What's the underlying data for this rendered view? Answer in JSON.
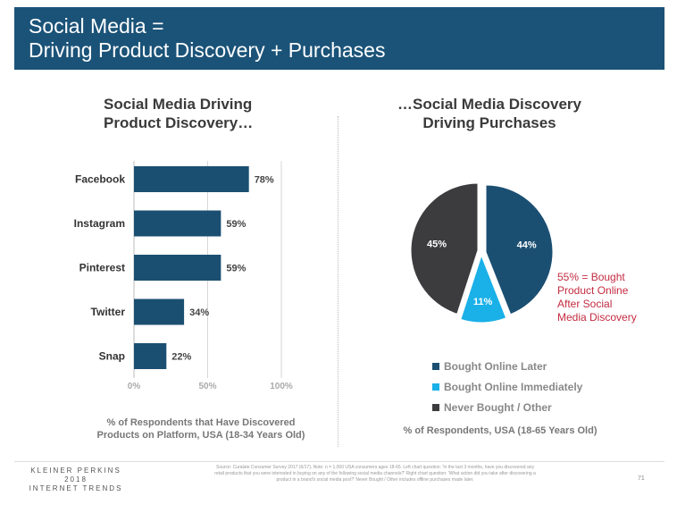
{
  "header": {
    "title_line1": "Social Media =",
    "title_line2": "Driving Product Discovery + Purchases"
  },
  "left_chart": {
    "title_line1": "Social Media Driving",
    "title_line2": "Product Discovery…",
    "caption_line1": "% of Respondents that Have Discovered",
    "caption_line2": "Products on Platform, USA (18-34 Years Old)"
  },
  "right_chart": {
    "title_line1": "…Social Media Discovery",
    "title_line2": "Driving Purchases",
    "caption": "% of Respondents, USA (18-65 Years Old)",
    "annotation_lines": [
      "55% = Bought",
      "Product Online",
      "After Social",
      "Media Discovery"
    ]
  },
  "colors": {
    "header": "#1b5378",
    "bar": "#1b4f72",
    "pie_dark_blue": "#1b4f72",
    "pie_light_blue": "#1ab0e8",
    "pie_dark_gray": "#3c3c3e",
    "annotation": "#c32b41"
  },
  "chart_data": [
    {
      "type": "bar",
      "orientation": "horizontal",
      "title": "Social Media Driving Product Discovery…",
      "categories": [
        "Facebook",
        "Instagram",
        "Pinterest",
        "Twitter",
        "Snap"
      ],
      "values": [
        78,
        59,
        59,
        34,
        22
      ],
      "value_labels": [
        "78%",
        "59%",
        "59%",
        "34%",
        "22%"
      ],
      "xlim": [
        0,
        100
      ],
      "xticks": [
        0,
        50,
        100
      ],
      "xtick_labels": [
        "0%",
        "50%",
        "100%"
      ],
      "xlabel": "% of Respondents that Have Discovered Products on Platform, USA (18-34 Years Old)",
      "grid": true
    },
    {
      "type": "pie",
      "title": "…Social Media Discovery Driving Purchases",
      "labels": [
        "Bought Online Later",
        "Bought Online Immediately",
        "Never Bought / Other"
      ],
      "values": [
        44,
        11,
        45
      ],
      "value_labels": [
        "44%",
        "11%",
        "45%"
      ],
      "legend_position": "bottom"
    }
  ],
  "footer": {
    "logo_line1": "KLEINER PERKINS",
    "logo_line2": "2018",
    "logo_line3": "INTERNET TRENDS",
    "source": "Source: Curalate Consumer Survey 2017 (6/17). Note: n = 1,000 USA consumers ages 18-65. Left chart question: 'In the last 3 months, have you discovered any retail products that you were interested in buying on any of the following social media channels?' Right chart question: 'What action did you take after discovering a product in a brand's social media post?' Never Bought / Other includes offline purchases made later.",
    "page_number": "71"
  }
}
